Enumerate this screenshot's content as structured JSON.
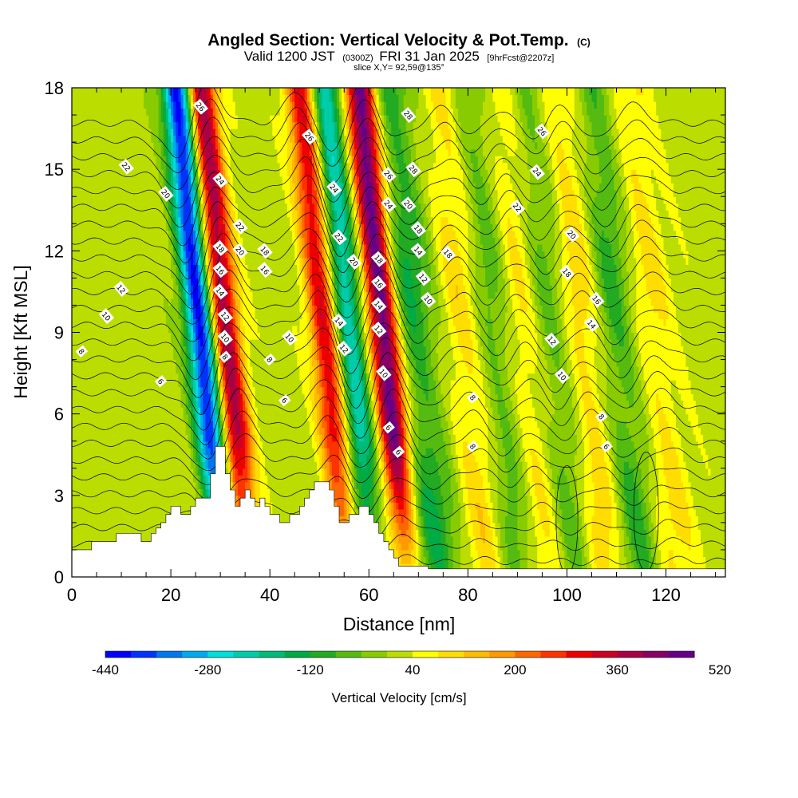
{
  "chart_data": {
    "type": "heatmap",
    "title": "Angled Section: Vertical Velocity & Pot.Temp.",
    "title_suffix": "(C)",
    "subtitle": {
      "valid": "Valid 1200 JST",
      "utc": "(0300Z)",
      "date": "FRI 31 Jan 2025",
      "forecast": "[9hrFcst@2207z]"
    },
    "slice_info": "slice X,Y= 92,59@135°",
    "xlabel": "Distance [nm]",
    "ylabel": "Height [Kft MSL]",
    "xlim": [
      0,
      132
    ],
    "ylim": [
      0,
      18
    ],
    "x_ticks": [
      0,
      20,
      40,
      60,
      80,
      100,
      120
    ],
    "y_ticks": [
      0,
      3,
      6,
      9,
      12,
      15,
      18
    ],
    "colorbar": {
      "title": "Vertical Velocity [cm/s]",
      "min": -440,
      "step": 40,
      "labels": [
        -440,
        -280,
        -120,
        40,
        200,
        360,
        520
      ],
      "colors": [
        "#0000ff",
        "#0033ff",
        "#0077ee",
        "#00aaee",
        "#00dddd",
        "#00ccaa",
        "#00bb77",
        "#00aa44",
        "#22aa22",
        "#55bb11",
        "#88cc00",
        "#bbdd00",
        "#ffff00",
        "#ffdd00",
        "#ffbb00",
        "#ff9900",
        "#ff6600",
        "#ff3300",
        "#ee0000",
        "#cc0022",
        "#aa0044",
        "#880066",
        "#660088"
      ]
    },
    "terrain": [
      [
        0,
        1
      ],
      [
        4,
        1
      ],
      [
        4,
        1.3
      ],
      [
        9,
        1.3
      ],
      [
        9,
        1.6
      ],
      [
        14,
        1.6
      ],
      [
        14,
        1.3
      ],
      [
        16,
        1.3
      ],
      [
        16,
        1.6
      ],
      [
        17,
        1.6
      ],
      [
        17,
        1.8
      ],
      [
        18,
        1.8
      ],
      [
        18,
        2
      ],
      [
        19,
        2
      ],
      [
        19,
        2.3
      ],
      [
        20,
        2.3
      ],
      [
        20,
        2.6
      ],
      [
        22,
        2.6
      ],
      [
        22,
        2.3
      ],
      [
        24,
        2.3
      ],
      [
        24,
        2.6
      ],
      [
        25,
        2.6
      ],
      [
        25,
        2.9
      ],
      [
        28,
        2.9
      ],
      [
        28,
        3.8
      ],
      [
        29,
        3.8
      ],
      [
        29,
        4.8
      ],
      [
        31,
        4.8
      ],
      [
        31,
        3.8
      ],
      [
        32,
        3.8
      ],
      [
        32,
        3.2
      ],
      [
        33,
        3.2
      ],
      [
        33,
        2.6
      ],
      [
        34,
        2.6
      ],
      [
        34,
        2.9
      ],
      [
        35,
        2.9
      ],
      [
        35,
        3.2
      ],
      [
        36,
        3.2
      ],
      [
        36,
        2.9
      ],
      [
        37,
        2.9
      ],
      [
        37,
        2.6
      ],
      [
        38,
        2.6
      ],
      [
        38,
        2.9
      ],
      [
        39,
        2.9
      ],
      [
        39,
        2.6
      ],
      [
        40,
        2.6
      ],
      [
        40,
        2.3
      ],
      [
        42,
        2.3
      ],
      [
        42,
        2
      ],
      [
        44,
        2
      ],
      [
        44,
        2.3
      ],
      [
        46,
        2.3
      ],
      [
        46,
        2.6
      ],
      [
        47,
        2.6
      ],
      [
        47,
        2.9
      ],
      [
        48,
        2.9
      ],
      [
        48,
        3.2
      ],
      [
        49,
        3.2
      ],
      [
        49,
        3.5
      ],
      [
        52,
        3.5
      ],
      [
        52,
        3.2
      ],
      [
        53,
        3.2
      ],
      [
        53,
        2.6
      ],
      [
        54,
        2.6
      ],
      [
        54,
        2
      ],
      [
        56,
        2
      ],
      [
        56,
        2.3
      ],
      [
        58,
        2.3
      ],
      [
        58,
        2.6
      ],
      [
        60,
        2.6
      ],
      [
        60,
        2.3
      ],
      [
        61,
        2.3
      ],
      [
        61,
        2
      ],
      [
        62,
        2
      ],
      [
        62,
        1.6
      ],
      [
        63,
        1.6
      ],
      [
        63,
        1.3
      ],
      [
        64,
        1.3
      ],
      [
        64,
        1
      ],
      [
        65,
        1
      ],
      [
        65,
        0.7
      ],
      [
        66,
        0.7
      ],
      [
        66,
        0.4
      ],
      [
        72,
        0.4
      ],
      [
        72,
        0.3
      ],
      [
        132,
        0.3
      ]
    ],
    "updrafts": [
      {
        "x_base": 36,
        "w_peak": 380
      },
      {
        "x_base": 56,
        "w_peak": 300
      },
      {
        "x_base": 68,
        "w_peak": 460
      },
      {
        "x_base": 85,
        "w_peak": 120
      },
      {
        "x_base": 96,
        "w_peak": 110
      },
      {
        "x_base": 108,
        "w_peak": 130
      },
      {
        "x_base": 122,
        "w_peak": 90
      }
    ],
    "downdrafts": [
      {
        "x_base": 31,
        "w_peak": -440
      },
      {
        "x_base": 61,
        "w_peak": -260
      },
      {
        "x_base": 74,
        "w_peak": -160
      },
      {
        "x_base": 90,
        "w_peak": -140
      },
      {
        "x_base": 102,
        "w_peak": -120
      },
      {
        "x_base": 115,
        "w_peak": -140
      }
    ],
    "isentropes": {
      "levels": [
        6,
        8,
        10,
        12,
        14,
        16,
        18,
        20,
        22,
        24,
        26,
        28
      ],
      "labels": [
        {
          "text": "26",
          "x": 26,
          "y": 17.3
        },
        {
          "text": "22",
          "x": 11,
          "y": 15.1
        },
        {
          "text": "20",
          "x": 19,
          "y": 14.1
        },
        {
          "text": "12",
          "x": 10,
          "y": 10.6
        },
        {
          "text": "10",
          "x": 7,
          "y": 9.6
        },
        {
          "text": "8",
          "x": 2,
          "y": 8.3
        },
        {
          "text": "6",
          "x": 18,
          "y": 7.2
        },
        {
          "text": "24",
          "x": 30,
          "y": 14.6
        },
        {
          "text": "22",
          "x": 34,
          "y": 12.9
        },
        {
          "text": "20",
          "x": 34,
          "y": 12.0
        },
        {
          "text": "18",
          "x": 30,
          "y": 12.1
        },
        {
          "text": "16",
          "x": 30,
          "y": 11.3
        },
        {
          "text": "14",
          "x": 30,
          "y": 10.5
        },
        {
          "text": "12",
          "x": 31,
          "y": 9.6
        },
        {
          "text": "10",
          "x": 31,
          "y": 8.8
        },
        {
          "text": "8",
          "x": 31,
          "y": 8.1
        },
        {
          "text": "18",
          "x": 39,
          "y": 12.0
        },
        {
          "text": "16",
          "x": 39,
          "y": 11.3
        },
        {
          "text": "10",
          "x": 44,
          "y": 8.8
        },
        {
          "text": "8",
          "x": 40,
          "y": 8.0
        },
        {
          "text": "6",
          "x": 43,
          "y": 6.5
        },
        {
          "text": "26",
          "x": 48,
          "y": 16.2
        },
        {
          "text": "24",
          "x": 53,
          "y": 14.3
        },
        {
          "text": "22",
          "x": 54,
          "y": 12.5
        },
        {
          "text": "20",
          "x": 57,
          "y": 11.6
        },
        {
          "text": "14",
          "x": 54,
          "y": 9.4
        },
        {
          "text": "12",
          "x": 55,
          "y": 8.4
        },
        {
          "text": "18",
          "x": 62,
          "y": 11.7
        },
        {
          "text": "16",
          "x": 62,
          "y": 10.8
        },
        {
          "text": "14",
          "x": 62,
          "y": 10.0
        },
        {
          "text": "12",
          "x": 62,
          "y": 9.1
        },
        {
          "text": "10",
          "x": 63,
          "y": 7.5
        },
        {
          "text": "6",
          "x": 64,
          "y": 5.5
        },
        {
          "text": "6",
          "x": 66,
          "y": 4.6
        },
        {
          "text": "28",
          "x": 68,
          "y": 17.0
        },
        {
          "text": "26",
          "x": 64,
          "y": 14.8
        },
        {
          "text": "28",
          "x": 69,
          "y": 15.0
        },
        {
          "text": "24",
          "x": 64,
          "y": 13.7
        },
        {
          "text": "20",
          "x": 68,
          "y": 13.7
        },
        {
          "text": "18",
          "x": 70,
          "y": 12.8
        },
        {
          "text": "14",
          "x": 70,
          "y": 12.0
        },
        {
          "text": "12",
          "x": 71,
          "y": 11.0
        },
        {
          "text": "10",
          "x": 72,
          "y": 10.2
        },
        {
          "text": "18",
          "x": 76,
          "y": 11.9
        },
        {
          "text": "8",
          "x": 81,
          "y": 6.6
        },
        {
          "text": "8",
          "x": 81,
          "y": 4.8
        },
        {
          "text": "26",
          "x": 95,
          "y": 16.4
        },
        {
          "text": "24",
          "x": 94,
          "y": 14.9
        },
        {
          "text": "22",
          "x": 90,
          "y": 13.6
        },
        {
          "text": "20",
          "x": 101,
          "y": 12.6
        },
        {
          "text": "18",
          "x": 100,
          "y": 11.2
        },
        {
          "text": "16",
          "x": 106,
          "y": 10.2
        },
        {
          "text": "14",
          "x": 105,
          "y": 9.3
        },
        {
          "text": "12",
          "x": 97,
          "y": 8.7
        },
        {
          "text": "10",
          "x": 99,
          "y": 7.4
        },
        {
          "text": "8",
          "x": 107,
          "y": 5.9
        },
        {
          "text": "6",
          "x": 108,
          "y": 4.8
        }
      ]
    }
  }
}
